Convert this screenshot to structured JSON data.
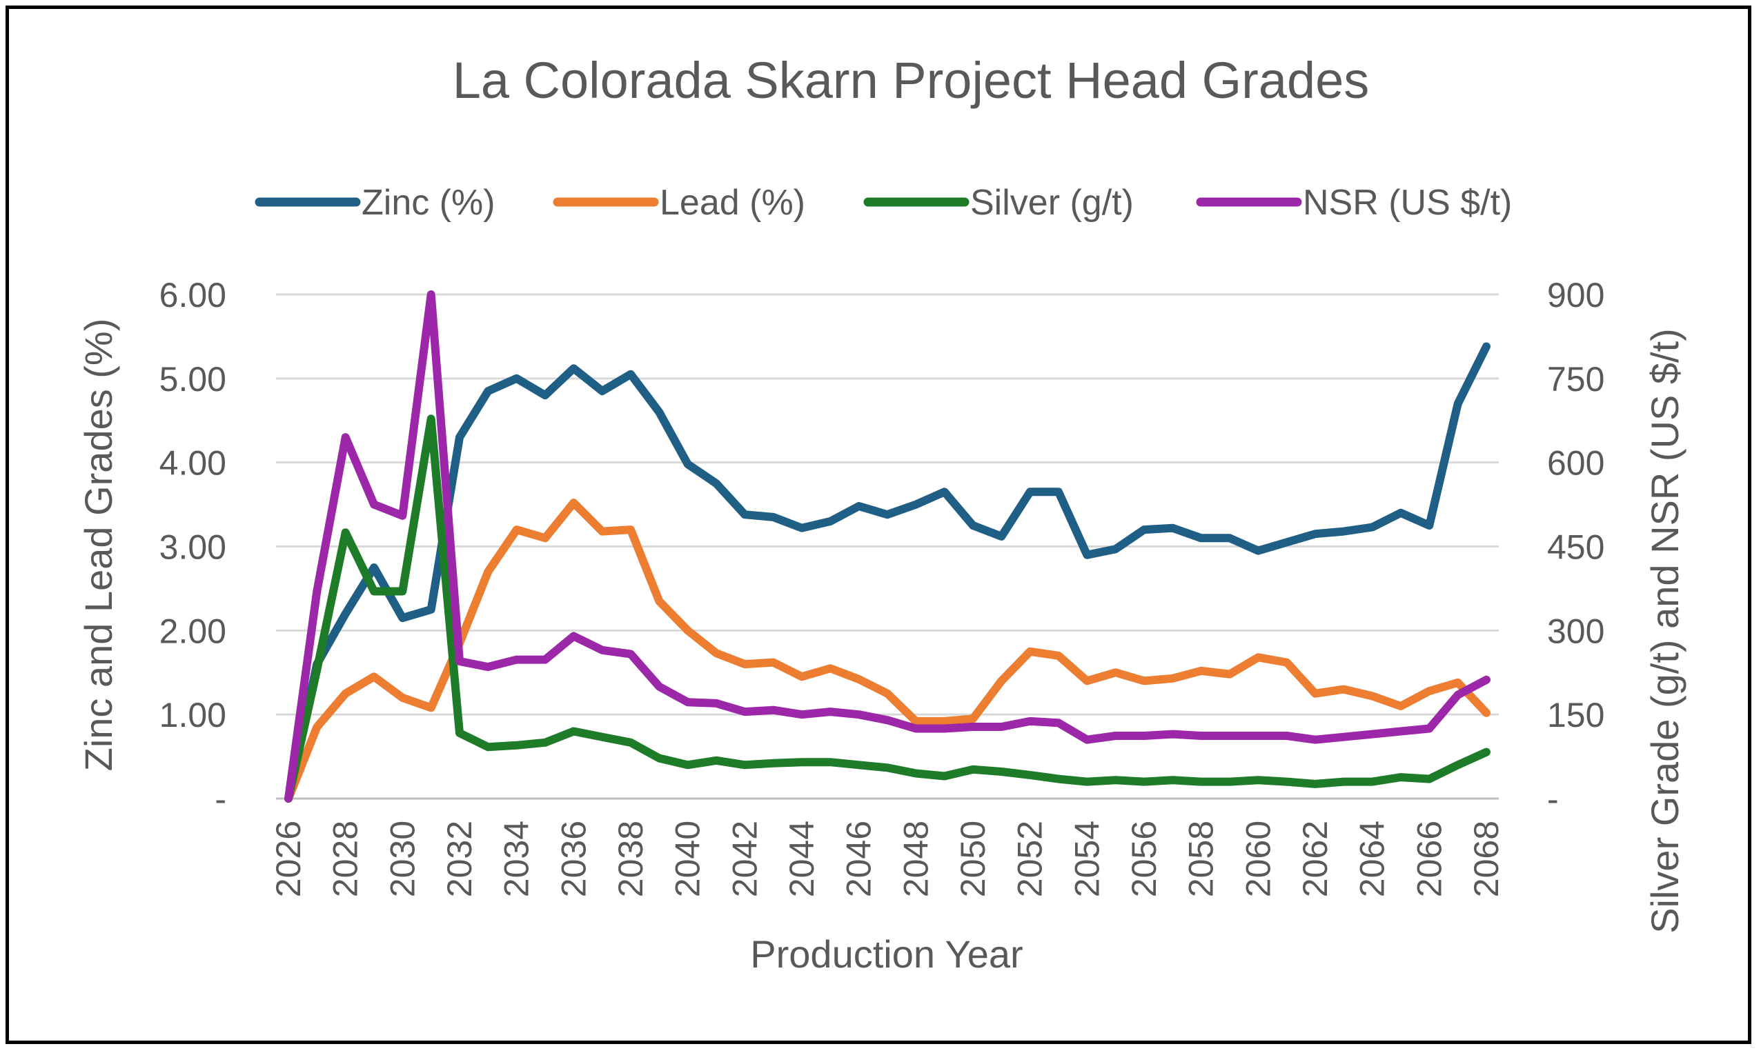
{
  "chart_data": {
    "type": "line",
    "title": "La Colorada Skarn Project Head Grades",
    "xlabel": "Production Year",
    "ylabel_left": "Zinc and Lead Grades (%)",
    "ylabel_right": "Silver Grade (g/t) and NSR (US $/t)",
    "ylim_left": [
      0,
      6
    ],
    "ylim_right": [
      0,
      900
    ],
    "yticks_left": [
      0,
      1,
      2,
      3,
      4,
      5,
      6
    ],
    "yticks_left_labels": [
      "-",
      "1.00",
      "2.00",
      "3.00",
      "4.00",
      "5.00",
      "6.00"
    ],
    "yticks_right": [
      0,
      150,
      300,
      450,
      600,
      750,
      900
    ],
    "yticks_right_labels": [
      "-",
      "150",
      "300",
      "450",
      "600",
      "750",
      "900"
    ],
    "xtick_labels": [
      "2026",
      "2028",
      "2030",
      "2032",
      "2034",
      "2036",
      "2038",
      "2040",
      "2042",
      "2044",
      "2046",
      "2048",
      "2050",
      "2052",
      "2054",
      "2056",
      "2058",
      "2060",
      "2062",
      "2064",
      "2066",
      "2068"
    ],
    "x": [
      2026,
      2027,
      2028,
      2029,
      2030,
      2031,
      2032,
      2033,
      2034,
      2035,
      2036,
      2037,
      2038,
      2039,
      2040,
      2041,
      2042,
      2043,
      2044,
      2045,
      2046,
      2047,
      2048,
      2049,
      2050,
      2051,
      2052,
      2053,
      2054,
      2055,
      2056,
      2057,
      2058,
      2059,
      2060,
      2061,
      2062,
      2063,
      2064,
      2065,
      2066,
      2067,
      2068
    ],
    "legend_position": "top",
    "grid": "horizontal",
    "series": [
      {
        "name": "Zinc (%)",
        "axis": "left",
        "color": "#1f5f86",
        "values": [
          0,
          1.6,
          2.2,
          2.75,
          2.15,
          2.25,
          4.3,
          4.85,
          5.0,
          4.8,
          5.12,
          4.85,
          5.05,
          4.6,
          3.98,
          3.75,
          3.38,
          3.35,
          3.22,
          3.3,
          3.48,
          3.38,
          3.5,
          3.65,
          3.25,
          3.12,
          3.65,
          3.65,
          2.9,
          2.97,
          3.2,
          3.22,
          3.1,
          3.1,
          2.95,
          3.05,
          3.15,
          3.18,
          3.23,
          3.4,
          3.25,
          4.7,
          5.38
        ]
      },
      {
        "name": "Lead (%)",
        "axis": "left",
        "color": "#ed7d31",
        "values": [
          0,
          0.85,
          1.25,
          1.45,
          1.2,
          1.08,
          1.85,
          2.7,
          3.2,
          3.1,
          3.52,
          3.18,
          3.2,
          2.35,
          2.0,
          1.73,
          1.6,
          1.62,
          1.45,
          1.55,
          1.42,
          1.25,
          0.92,
          0.92,
          0.95,
          1.4,
          1.75,
          1.7,
          1.4,
          1.5,
          1.4,
          1.43,
          1.52,
          1.48,
          1.68,
          1.62,
          1.25,
          1.3,
          1.22,
          1.1,
          1.28,
          1.38,
          1.02
        ]
      },
      {
        "name": "Silver (g/t)",
        "axis": "right",
        "color": "#1e7b28",
        "values": [
          0,
          230,
          475,
          370,
          370,
          678,
          117,
          92,
          95,
          100,
          120,
          110,
          100,
          72,
          60,
          68,
          60,
          63,
          65,
          65,
          60,
          55,
          45,
          40,
          52,
          48,
          42,
          35,
          30,
          33,
          30,
          33,
          30,
          30,
          33,
          30,
          26,
          30,
          30,
          38,
          35,
          60,
          83
        ]
      },
      {
        "name": "NSR (US $/t)",
        "axis": "right",
        "color": "#9c27a8",
        "values": [
          0,
          370,
          645,
          525,
          505,
          900,
          245,
          235,
          248,
          248,
          290,
          265,
          258,
          200,
          172,
          170,
          155,
          158,
          150,
          155,
          150,
          140,
          125,
          125,
          128,
          128,
          138,
          135,
          105,
          112,
          112,
          115,
          112,
          112,
          112,
          112,
          105,
          110,
          115,
          120,
          125,
          185,
          212
        ]
      }
    ]
  }
}
